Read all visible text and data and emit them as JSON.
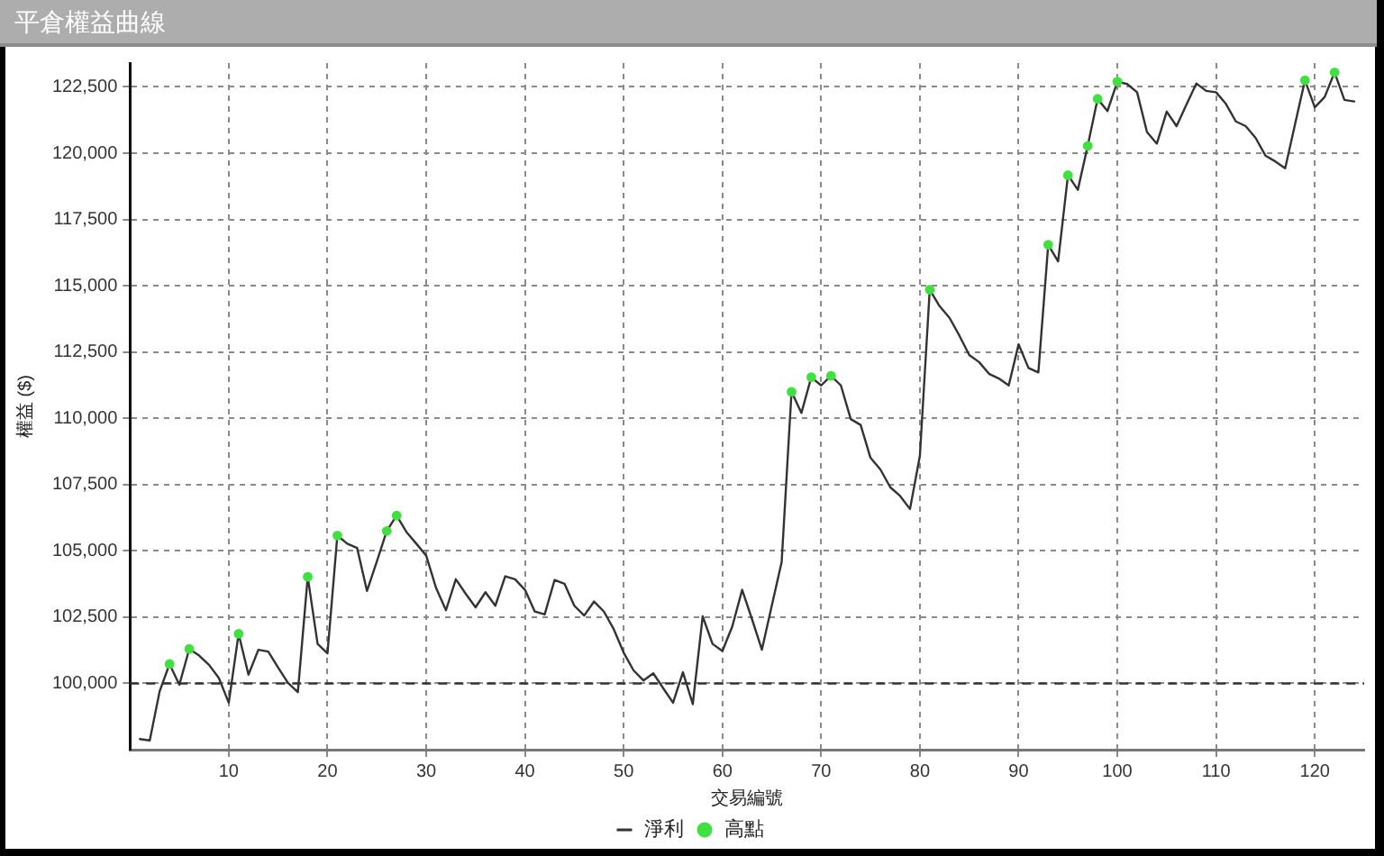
{
  "chart_data": {
    "type": "line",
    "title": "平倉權益曲線",
    "xlabel": "交易編號",
    "ylabel": "權益 ($)",
    "x": [
      1,
      2,
      3,
      4,
      5,
      6,
      7,
      8,
      9,
      10,
      11,
      12,
      13,
      14,
      15,
      16,
      17,
      18,
      19,
      20,
      21,
      22,
      23,
      24,
      25,
      26,
      27,
      28,
      29,
      30,
      31,
      32,
      33,
      34,
      35,
      36,
      37,
      38,
      39,
      40,
      41,
      42,
      43,
      44,
      45,
      46,
      47,
      48,
      49,
      50,
      51,
      52,
      53,
      54,
      55,
      56,
      57,
      58,
      59,
      60,
      61,
      62,
      63,
      64,
      65,
      66,
      67,
      68,
      69,
      70,
      71,
      72,
      73,
      74,
      75,
      76,
      77,
      78,
      79,
      80,
      81,
      82,
      83,
      84,
      85,
      86,
      87,
      88,
      89,
      90,
      91,
      92,
      93,
      94,
      95,
      96,
      97,
      98,
      99,
      100,
      101,
      102,
      103,
      104,
      105,
      106,
      107,
      108,
      109,
      110,
      111,
      112,
      113,
      114,
      115,
      116,
      117,
      118,
      119,
      120,
      121,
      122,
      123,
      124
    ],
    "series": [
      {
        "name": "淨利",
        "color": "#333333",
        "values": [
          97900,
          97850,
          99700,
          100730,
          99950,
          101300,
          101050,
          100700,
          100200,
          99270,
          101870,
          100330,
          101270,
          101200,
          100600,
          100020,
          99670,
          104020,
          101490,
          101130,
          105580,
          105270,
          105110,
          103490,
          104600,
          105750,
          106330,
          105710,
          105270,
          104820,
          103600,
          102760,
          103930,
          103380,
          102870,
          103440,
          102930,
          104040,
          103930,
          103530,
          102710,
          102600,
          103900,
          103760,
          102930,
          102560,
          103090,
          102710,
          102040,
          101160,
          100490,
          100110,
          100380,
          99820,
          99270,
          100420,
          99220,
          102530,
          101490,
          101220,
          102150,
          103530,
          102420,
          101270,
          102930,
          104580,
          111000,
          110200,
          111550,
          111240,
          111600,
          111240,
          109970,
          109750,
          108510,
          108070,
          107400,
          107070,
          106580,
          108580,
          114850,
          114230,
          113790,
          113120,
          112390,
          112120,
          111680,
          111500,
          111240,
          112790,
          111900,
          111730,
          116550,
          115920,
          119170,
          118620,
          120280,
          122050,
          121590,
          122700,
          122610,
          122300,
          120800,
          120360,
          121570,
          121020,
          121840,
          122630,
          122350,
          122300,
          121860,
          121200,
          121020,
          120580,
          119910,
          119690,
          119430,
          121100,
          122750,
          121730,
          122120,
          123050,
          122010,
          121950
        ]
      },
      {
        "name": "高點",
        "type": "scatter",
        "color": "#40e040",
        "marker": "circle",
        "x": [
          4,
          6,
          11,
          18,
          21,
          26,
          27,
          67,
          69,
          71,
          81,
          93,
          95,
          97,
          98,
          100,
          119,
          122
        ],
        "values": [
          100730,
          101300,
          101870,
          104020,
          105580,
          105750,
          106330,
          111000,
          111550,
          111600,
          114850,
          116550,
          119170,
          120280,
          122050,
          122700,
          122750,
          123050
        ]
      }
    ],
    "xlim": [
      0,
      125
    ],
    "xticks": [
      10,
      20,
      30,
      40,
      50,
      60,
      70,
      80,
      90,
      100,
      110,
      120
    ],
    "ylim": [
      97500,
      123400
    ],
    "yticks": [
      {
        "value": 100000,
        "label": "100,000"
      },
      {
        "value": 102500,
        "label": "102,500"
      },
      {
        "value": 105000,
        "label": "105,000"
      },
      {
        "value": 107500,
        "label": "107,500"
      },
      {
        "value": 110000,
        "label": "110,000"
      },
      {
        "value": 112500,
        "label": "112,500"
      },
      {
        "value": 115000,
        "label": "115,000"
      },
      {
        "value": 117500,
        "label": "117,500"
      },
      {
        "value": 120000,
        "label": "120,000"
      },
      {
        "value": 122500,
        "label": "122,500"
      }
    ],
    "ref_lines": [
      {
        "axis": "y",
        "value": 100000,
        "color": "#333333",
        "line_style": "dashed"
      }
    ],
    "grid": true,
    "legend": "bottom"
  }
}
